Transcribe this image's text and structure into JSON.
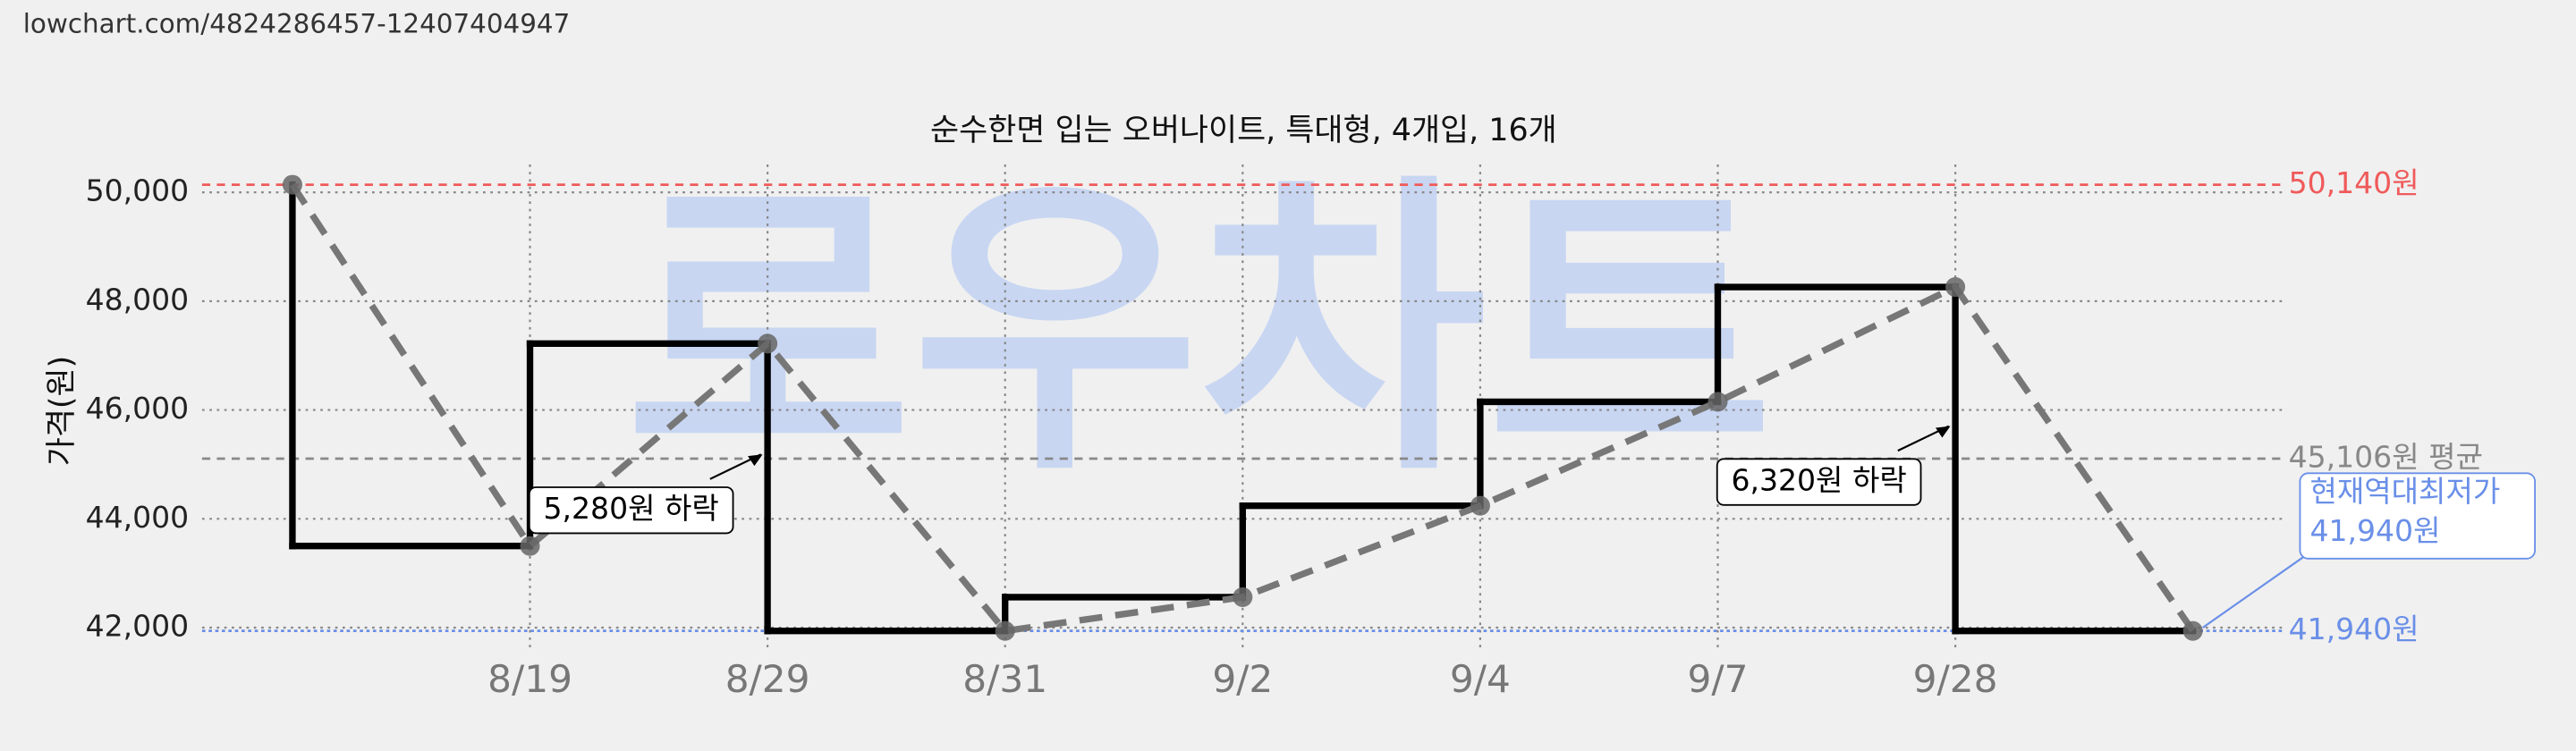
{
  "url": "lowchart.com/4824286457-12407404947",
  "chart_data": {
    "type": "line",
    "title": "순수한면 입는 오버나이트, 특대형, 4개입, 16개",
    "y_label": "가격(원)",
    "watermark": "로우차트",
    "categories": [
      null,
      "8/19",
      "8/29",
      "8/31",
      "9/2",
      "9/4",
      "9/7",
      "9/28",
      null
    ],
    "series": [
      {
        "color": "#000000",
        "trend_color": "#777777",
        "values": [
          50140,
          43500,
          47220,
          41940,
          42560,
          44240,
          46150,
          48260,
          41940
        ]
      }
    ],
    "ylim": [
      41600,
      50400
    ],
    "yticks": [
      {
        "value": 42000,
        "label": "42,000"
      },
      {
        "value": 44000,
        "label": "44,000"
      },
      {
        "value": 46000,
        "label": "46,000"
      },
      {
        "value": 48000,
        "label": "48,000"
      },
      {
        "value": 50000,
        "label": "50,000"
      }
    ],
    "grid": true,
    "ref_lines": [
      {
        "value": 50140,
        "label": "50,140원",
        "color": "#f05a5a"
      },
      {
        "value": 45106,
        "label": "45,106원 평균",
        "color": "#888888"
      },
      {
        "value": 41940,
        "label": "41,940원",
        "color": "#6a8fe8"
      }
    ],
    "annotations": [
      {
        "text": "5,280원 하락",
        "from": 2
      },
      {
        "text": "6,320원 하락",
        "from": 7
      }
    ],
    "current_low": {
      "title": "현재역대최저가",
      "label": "41,940원"
    }
  }
}
